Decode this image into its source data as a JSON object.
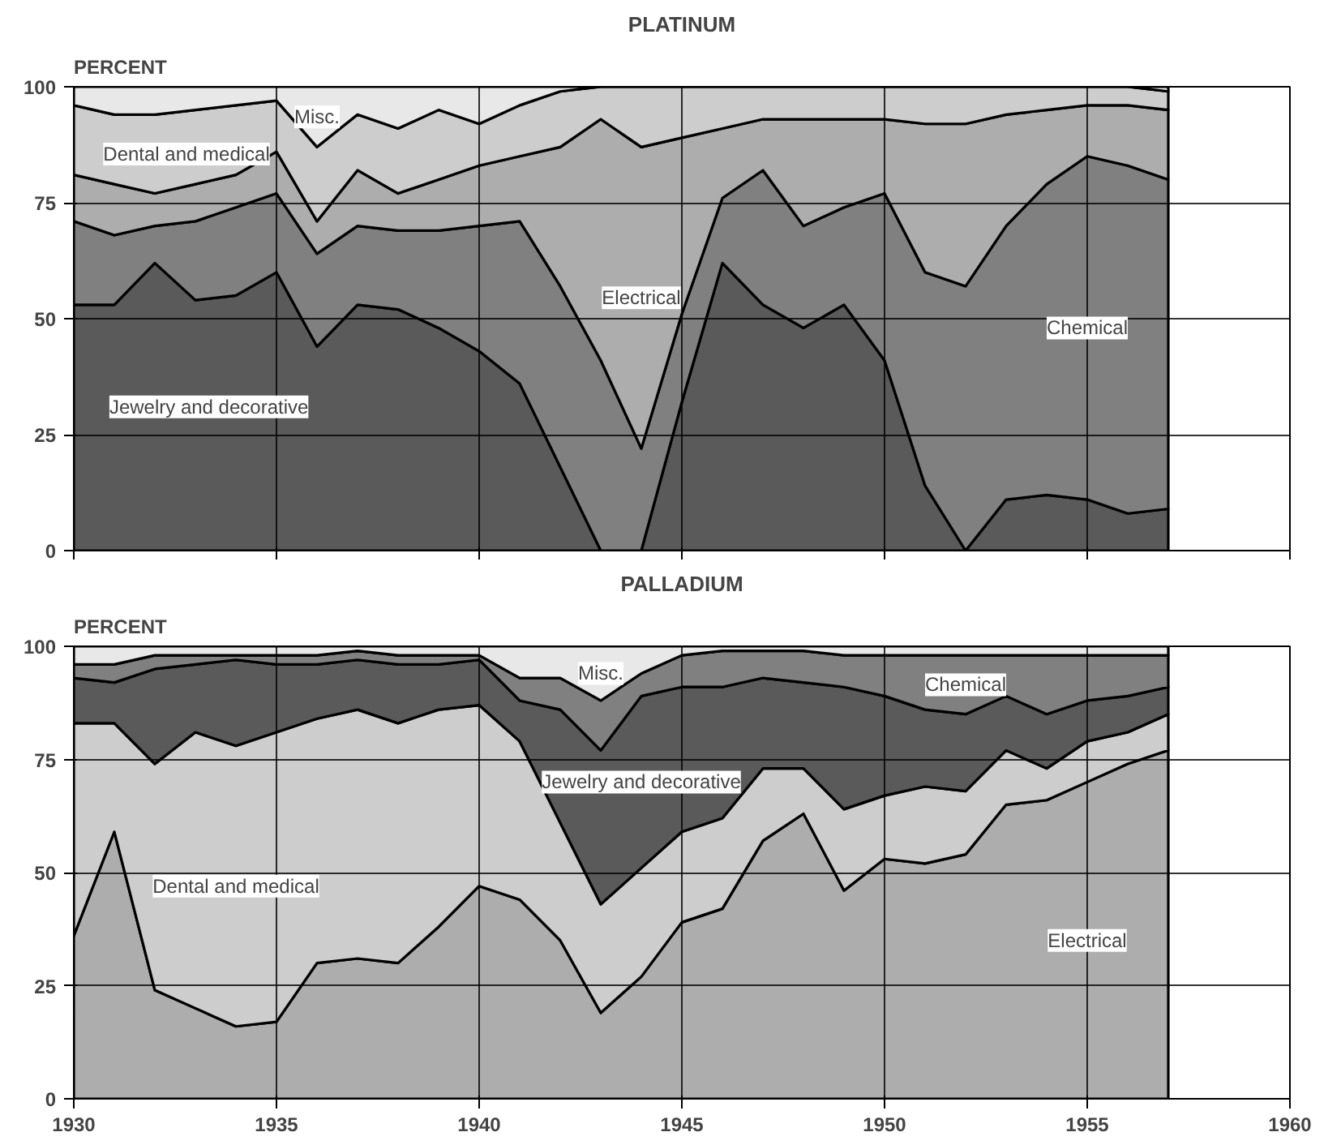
{
  "chart_data": [
    {
      "type": "area",
      "title": "PLATINUM",
      "ylabel": "PERCENT",
      "stacked": true,
      "grid": true,
      "tick_labels": "y",
      "x": [
        1930,
        1931,
        1932,
        1933,
        1934,
        1935,
        1936,
        1937,
        1938,
        1939,
        1940,
        1941,
        1942,
        1943,
        1944,
        1945,
        1946,
        1947,
        1948,
        1949,
        1950,
        1951,
        1952,
        1953,
        1954,
        1955,
        1956,
        1957
      ],
      "xlim": [
        1930,
        1960
      ],
      "xticks": [
        1930,
        1935,
        1940,
        1945,
        1950,
        1955,
        1960
      ],
      "ylim": [
        0,
        100
      ],
      "yticks": [
        0,
        25,
        50,
        75,
        100
      ],
      "series": [
        {
          "name": "Jewelry and decorative",
          "color": "#5a5a5a",
          "values": [
            53,
            53,
            62,
            54,
            55,
            60,
            44,
            53,
            52,
            48,
            43,
            36,
            18,
            0,
            0,
            32,
            62,
            53,
            48,
            53,
            41,
            14,
            0,
            11,
            12,
            11,
            8,
            9
          ]
        },
        {
          "name": "Chemical",
          "color": "#808080",
          "values": [
            18,
            15,
            8,
            17,
            19,
            17,
            20,
            17,
            17,
            21,
            27,
            35,
            39,
            41,
            22,
            19,
            14,
            29,
            22,
            21,
            36,
            46,
            57,
            59,
            67,
            74,
            75,
            71
          ]
        },
        {
          "name": "Electrical",
          "color": "#adadad",
          "values": [
            10,
            11,
            7,
            8,
            7,
            9,
            7,
            12,
            8,
            11,
            13,
            14,
            30,
            52,
            65,
            38,
            15,
            11,
            23,
            19,
            16,
            32,
            35,
            24,
            16,
            11,
            13,
            15
          ]
        },
        {
          "name": "Dental and medical",
          "color": "#cdcdcd",
          "values": [
            15,
            15,
            17,
            16,
            15,
            11,
            16,
            12,
            14,
            15,
            9,
            11,
            12,
            7,
            13,
            11,
            9,
            7,
            7,
            7,
            7,
            8,
            8,
            6,
            5,
            4,
            4,
            4
          ]
        },
        {
          "name": "Misc.",
          "color": "#e8e8e8",
          "values": [
            4,
            6,
            6,
            5,
            4,
            3,
            13,
            6,
            9,
            5,
            8,
            4,
            1,
            0,
            0,
            0,
            0,
            0,
            0,
            0,
            0,
            0,
            0,
            0,
            0,
            0,
            0,
            1
          ]
        }
      ]
    },
    {
      "type": "area",
      "title": "PALLADIUM",
      "ylabel": "PERCENT",
      "stacked": true,
      "grid": true,
      "x": [
        1930,
        1931,
        1932,
        1933,
        1934,
        1935,
        1936,
        1937,
        1938,
        1939,
        1940,
        1941,
        1942,
        1943,
        1944,
        1945,
        1946,
        1947,
        1948,
        1949,
        1950,
        1951,
        1952,
        1953,
        1954,
        1955,
        1956,
        1957
      ],
      "xlim": [
        1930,
        1960
      ],
      "xticks": [
        1930,
        1935,
        1940,
        1945,
        1950,
        1955,
        1960
      ],
      "ylim": [
        0,
        100
      ],
      "yticks": [
        0,
        25,
        50,
        75,
        100
      ],
      "series": [
        {
          "name": "Electrical",
          "color": "#adadad",
          "values": [
            36,
            59,
            24,
            20,
            16,
            17,
            30,
            31,
            30,
            38,
            47,
            44,
            35,
            19,
            27,
            39,
            42,
            57,
            63,
            46,
            53,
            52,
            54,
            65,
            66,
            70,
            74,
            77
          ]
        },
        {
          "name": "Dental and medical",
          "color": "#cdcdcd",
          "values": [
            47,
            24,
            50,
            61,
            62,
            64,
            54,
            55,
            53,
            48,
            40,
            35,
            26,
            24,
            24,
            20,
            20,
            16,
            10,
            18,
            14,
            17,
            14,
            12,
            7,
            9,
            7,
            8
          ]
        },
        {
          "name": "Jewelry and decorative",
          "color": "#5a5a5a",
          "values": [
            10,
            9,
            21,
            15,
            19,
            15,
            12,
            11,
            13,
            10,
            10,
            9,
            25,
            34,
            38,
            32,
            29,
            20,
            19,
            27,
            22,
            17,
            17,
            12,
            12,
            9,
            8,
            6
          ]
        },
        {
          "name": "Chemical",
          "color": "#808080",
          "values": [
            3,
            4,
            3,
            2,
            1,
            2,
            2,
            2,
            2,
            2,
            1,
            5,
            7,
            11,
            5,
            7,
            8,
            6,
            7,
            7,
            9,
            12,
            13,
            9,
            13,
            10,
            9,
            7
          ]
        },
        {
          "name": "Misc.",
          "color": "#e8e8e8",
          "values": [
            4,
            4,
            2,
            2,
            2,
            2,
            2,
            1,
            2,
            2,
            2,
            7,
            7,
            12,
            6,
            2,
            1,
            1,
            1,
            2,
            2,
            2,
            2,
            2,
            2,
            2,
            2,
            2
          ]
        }
      ]
    }
  ]
}
